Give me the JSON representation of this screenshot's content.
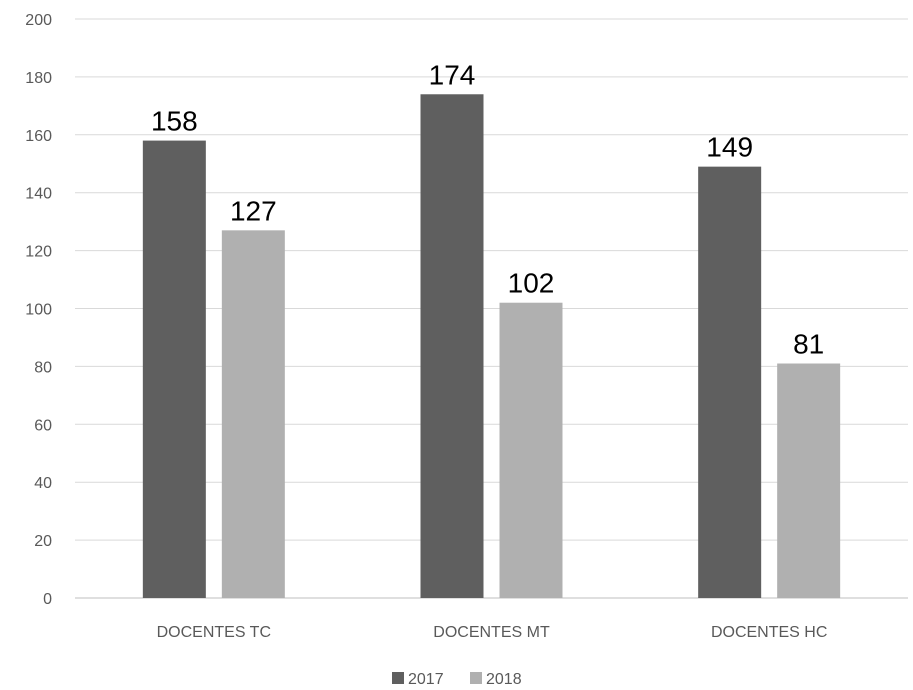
{
  "chart_data": {
    "type": "bar",
    "title": "",
    "xlabel": "",
    "ylabel": "",
    "categories": [
      "DOCENTES TC",
      "DOCENTES MT",
      "DOCENTES HC"
    ],
    "series": [
      {
        "name": "2017",
        "values": [
          158,
          174,
          149
        ],
        "color": "#5f5f5f"
      },
      {
        "name": "2018",
        "values": [
          127,
          102,
          81
        ],
        "color": "#b0b0b0"
      }
    ],
    "ylim": [
      0,
      200
    ],
    "yticks": [
      0,
      20,
      40,
      60,
      80,
      100,
      120,
      140,
      160,
      180,
      200
    ],
    "grid": true,
    "data_labels": true,
    "legend": "bottom"
  }
}
